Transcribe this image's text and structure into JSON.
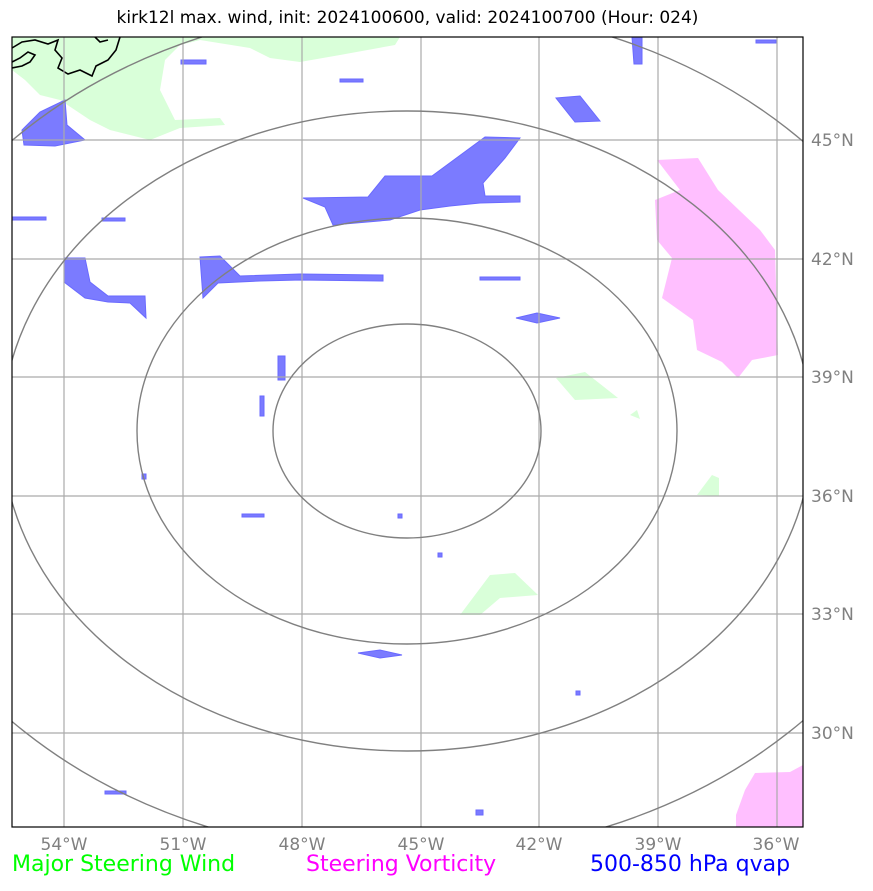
{
  "title": "kirk12l max. wind, init: 2024100600, valid: 2024100700 (Hour: 024)",
  "lon_labels": [
    "54°W",
    "51°W",
    "48°W",
    "45°W",
    "42°W",
    "39°W",
    "36°W"
  ],
  "lat_labels": [
    "45°N",
    "42°N",
    "39°N",
    "36°N",
    "33°N",
    "30°N"
  ],
  "legend": {
    "green": {
      "label": "Major Steering Wind",
      "color": "#00ff00"
    },
    "magenta": {
      "label": "Steering Vorticity",
      "color": "#ff00ff"
    },
    "blue": {
      "label": "500-850 hPa qvap",
      "color": "#0000ff"
    }
  },
  "fill_colors": {
    "qvap": "#7b7bff",
    "vorticity": "#ffbfff",
    "steering_wind": "#d9ffd9"
  },
  "grid_color": "#aaaaaa",
  "range_ring_color": "#808080",
  "tick_color": "#808080"
}
